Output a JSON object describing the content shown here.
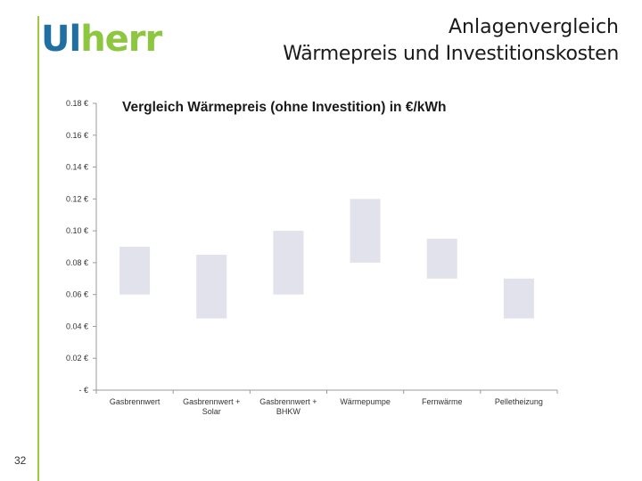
{
  "logo": {
    "part1": "Ul",
    "part2": "herr"
  },
  "header": {
    "line1": "Anlagenvergleich",
    "line2": "Wärmepreis und Investitionskosten"
  },
  "page_number": "32",
  "colors": {
    "accent_green": "#8dc63f",
    "accent_blue": "#1f6fa3",
    "bar_fill": "#e2e2ec"
  },
  "chart_data": {
    "type": "bar",
    "subtype": "floating-range",
    "title": "Vergleich Wärmepreis (ohne Investition) in €/kWh",
    "xlabel": "",
    "ylabel": "",
    "ylim": [
      0,
      0.18
    ],
    "yticks": [
      0,
      0.02,
      0.04,
      0.06,
      0.08,
      0.1,
      0.12,
      0.14,
      0.16,
      0.18
    ],
    "ytick_labels": [
      "- €",
      "0.02 €",
      "0.04 €",
      "0.06 €",
      "0.08 €",
      "0.10 €",
      "0.12 €",
      "0.14 €",
      "0.16 €",
      "0.18 €"
    ],
    "categories": [
      [
        "Gasbrennwert"
      ],
      [
        "Gasbrennwert +",
        "Solar"
      ],
      [
        "Gasbrennwert +",
        "BHKW"
      ],
      [
        "Wärmepumpe"
      ],
      [
        "Fernwärme"
      ],
      [
        "Pelletheizung"
      ]
    ],
    "low": [
      0.06,
      0.045,
      0.06,
      0.08,
      0.07,
      0.045
    ],
    "high": [
      0.09,
      0.085,
      0.1,
      0.12,
      0.095,
      0.07
    ],
    "grid": false,
    "legend": "none"
  }
}
